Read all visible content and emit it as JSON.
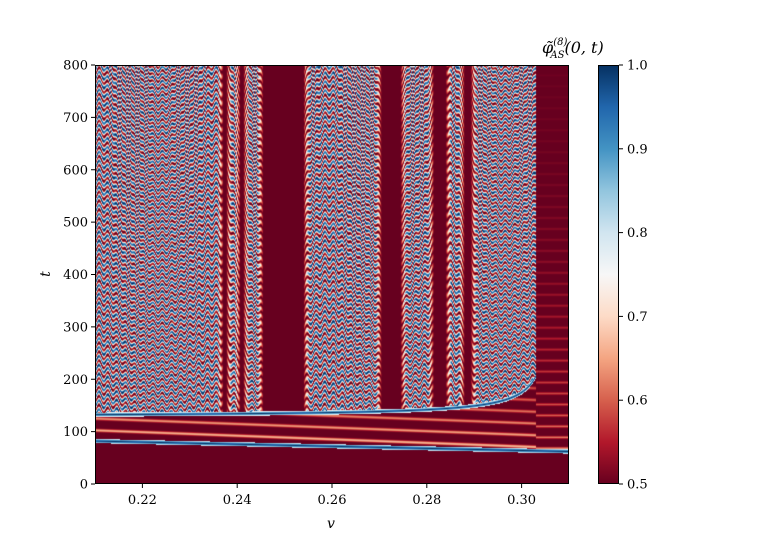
{
  "chart_data": {
    "type": "heatmap",
    "xlabel": "v",
    "ylabel": "t",
    "colorbar_label": {
      "base": "φ̃",
      "superscript": "(8)",
      "subscript": "AS",
      "args": "(0, t)"
    },
    "xlim": [
      0.21,
      0.31
    ],
    "ylim": [
      0,
      800
    ],
    "x_ticks": [
      "0.22",
      "0.24",
      "0.26",
      "0.28",
      "0.30"
    ],
    "x_tick_values": [
      0.22,
      0.24,
      0.26,
      0.28,
      0.3
    ],
    "y_ticks": [
      "0",
      "100",
      "200",
      "300",
      "400",
      "500",
      "600",
      "700",
      "800"
    ],
    "y_tick_values": [
      0,
      100,
      200,
      300,
      400,
      500,
      600,
      700,
      800
    ],
    "colorbar_range": [
      0.5,
      1.0
    ],
    "colorbar_ticks": [
      "0.5",
      "0.6",
      "0.7",
      "0.8",
      "0.9",
      "1.0"
    ],
    "colorbar_tick_values": [
      0.5,
      0.6,
      0.7,
      0.8,
      0.9,
      1.0
    ],
    "colormap": "RdBu",
    "colormap_stops": [
      "#67001f",
      "#b2182b",
      "#d6604d",
      "#f4a582",
      "#fddbc7",
      "#f7f7f7",
      "#d1e5f0",
      "#92c5de",
      "#4393c3",
      "#2166ac",
      "#053061"
    ],
    "background_value_color": "#67001f",
    "bounce_windows": [
      {
        "v_start": 0.2455,
        "v_end": 0.254
      },
      {
        "v_start": 0.2705,
        "v_end": 0.2745
      },
      {
        "v_start": 0.2815,
        "v_end": 0.284
      },
      {
        "v_start": 0.288,
        "v_end": 0.2893
      },
      {
        "v_start": 0.2407,
        "v_end": 0.2413
      },
      {
        "v_start": 0.2371,
        "v_end": 0.2377
      }
    ],
    "critical_velocity": 0.303
  }
}
